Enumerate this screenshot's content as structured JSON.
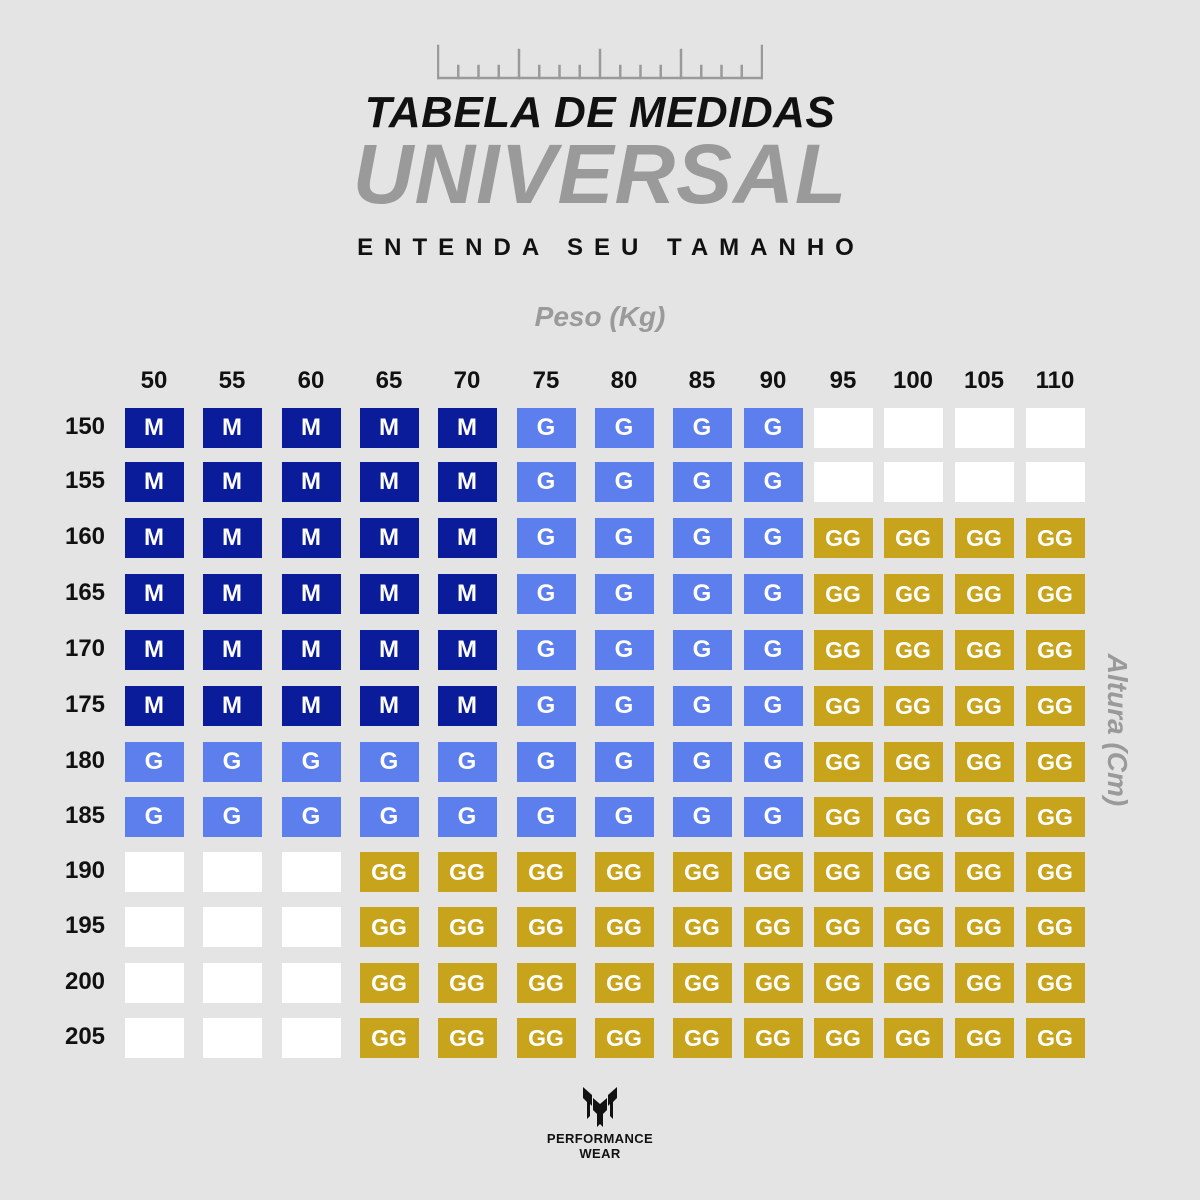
{
  "header": {
    "title": "TABELA DE MEDIDAS",
    "title_emphasis": "UNIVERSAL",
    "subtitle": "ENTENDA SEU TAMANHO"
  },
  "brand": {
    "line1": "PERFORMANCE",
    "line2": "WEAR",
    "logo_icon": "pw-logo-icon"
  },
  "colors": {
    "background": "#e4e4e4",
    "M": "#0a1c9a",
    "G": "#5d7fee",
    "GG": "#c8a31c",
    "empty": "#ffffff",
    "accent_gray": "#9a9a9a"
  },
  "chart_data": {
    "type": "table",
    "title": "TABELA DE MEDIDAS UNIVERSAL",
    "subtitle": "ENTENDA SEU TAMANHO",
    "xlabel": "Peso (Kg)",
    "ylabel": "Altura (Cm)",
    "columns": [
      "50",
      "55",
      "60",
      "65",
      "70",
      "75",
      "80",
      "85",
      "90",
      "95",
      "100",
      "105",
      "110"
    ],
    "rows": [
      "150",
      "155",
      "160",
      "165",
      "170",
      "175",
      "180",
      "185",
      "190",
      "195",
      "200",
      "205"
    ],
    "cells": [
      [
        "M",
        "M",
        "M",
        "M",
        "M",
        "G",
        "G",
        "G",
        "G",
        "",
        "",
        "",
        ""
      ],
      [
        "M",
        "M",
        "M",
        "M",
        "M",
        "G",
        "G",
        "G",
        "G",
        "",
        "",
        "",
        ""
      ],
      [
        "M",
        "M",
        "M",
        "M",
        "M",
        "G",
        "G",
        "G",
        "G",
        "GG",
        "GG",
        "GG",
        "GG"
      ],
      [
        "M",
        "M",
        "M",
        "M",
        "M",
        "G",
        "G",
        "G",
        "G",
        "GG",
        "GG",
        "GG",
        "GG"
      ],
      [
        "M",
        "M",
        "M",
        "M",
        "M",
        "G",
        "G",
        "G",
        "G",
        "GG",
        "GG",
        "GG",
        "GG"
      ],
      [
        "M",
        "M",
        "M",
        "M",
        "M",
        "G",
        "G",
        "G",
        "G",
        "GG",
        "GG",
        "GG",
        "GG"
      ],
      [
        "G",
        "G",
        "G",
        "G",
        "G",
        "G",
        "G",
        "G",
        "G",
        "GG",
        "GG",
        "GG",
        "GG"
      ],
      [
        "G",
        "G",
        "G",
        "G",
        "G",
        "G",
        "G",
        "G",
        "G",
        "GG",
        "GG",
        "GG",
        "GG"
      ],
      [
        "",
        "",
        "",
        "GG",
        "GG",
        "GG",
        "GG",
        "GG",
        "GG",
        "GG",
        "GG",
        "GG",
        "GG"
      ],
      [
        "",
        "",
        "",
        "GG",
        "GG",
        "GG",
        "GG",
        "GG",
        "GG",
        "GG",
        "GG",
        "GG",
        "GG"
      ],
      [
        "",
        "",
        "",
        "GG",
        "GG",
        "GG",
        "GG",
        "GG",
        "GG",
        "GG",
        "GG",
        "GG",
        "GG"
      ],
      [
        "",
        "",
        "",
        "GG",
        "GG",
        "GG",
        "GG",
        "GG",
        "GG",
        "GG",
        "GG",
        "GG",
        "GG"
      ]
    ]
  }
}
